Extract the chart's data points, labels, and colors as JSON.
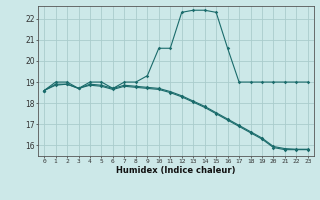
{
  "xlabel": "Humidex (Indice chaleur)",
  "bg_color": "#cce8e8",
  "grid_color": "#aacccc",
  "line_color": "#1a6b6b",
  "xlim": [
    -0.5,
    23.5
  ],
  "ylim": [
    15.5,
    22.6
  ],
  "xticks": [
    0,
    1,
    2,
    3,
    4,
    5,
    6,
    7,
    8,
    9,
    10,
    11,
    12,
    13,
    14,
    15,
    16,
    17,
    18,
    19,
    20,
    21,
    22,
    23
  ],
  "yticks": [
    16,
    17,
    18,
    19,
    20,
    21,
    22
  ],
  "line1_x": [
    0,
    1,
    2,
    3,
    4,
    5,
    6,
    7,
    8,
    9,
    10,
    11,
    12,
    13,
    14,
    15,
    16,
    17,
    18,
    19,
    20,
    21,
    22,
    23
  ],
  "line1_y": [
    18.6,
    19.0,
    19.0,
    18.7,
    19.0,
    19.0,
    18.7,
    19.0,
    19.0,
    19.3,
    20.6,
    20.6,
    22.3,
    22.4,
    22.4,
    22.3,
    20.6,
    19.0,
    19.0,
    19.0,
    19.0,
    19.0,
    19.0,
    19.0
  ],
  "line2_x": [
    0,
    1,
    2,
    3,
    4,
    5,
    6,
    7,
    8,
    9,
    10,
    11,
    12,
    13,
    14,
    15,
    16,
    17,
    18,
    19,
    20,
    21,
    22,
    23
  ],
  "line2_y": [
    18.6,
    18.85,
    18.9,
    18.7,
    18.85,
    18.8,
    18.65,
    18.8,
    18.75,
    18.7,
    18.65,
    18.5,
    18.3,
    18.05,
    17.8,
    17.5,
    17.2,
    16.9,
    16.6,
    16.3,
    15.9,
    15.8,
    15.8,
    15.8
  ],
  "line3_x": [
    0,
    1,
    2,
    3,
    4,
    5,
    6,
    7,
    8,
    9,
    10,
    11,
    12,
    13,
    14,
    15,
    16,
    17,
    18,
    19,
    20,
    21,
    22,
    23
  ],
  "line3_y": [
    18.6,
    18.9,
    18.9,
    18.7,
    18.9,
    18.85,
    18.7,
    18.85,
    18.8,
    18.75,
    18.7,
    18.55,
    18.35,
    18.1,
    17.85,
    17.55,
    17.25,
    16.95,
    16.65,
    16.35,
    15.95,
    15.85,
    15.82,
    15.82
  ]
}
